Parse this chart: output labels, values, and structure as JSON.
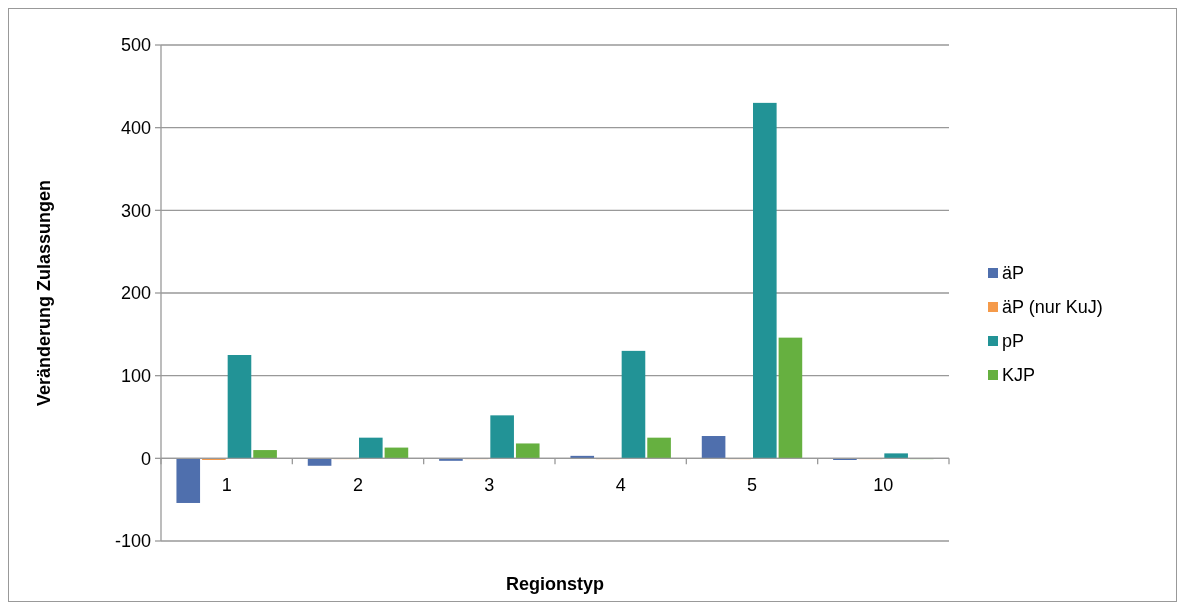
{
  "chart_data": {
    "type": "bar",
    "xlabel": "Regionstyp",
    "ylabel": "Veränderung Zulassungen",
    "categories": [
      "1",
      "2",
      "3",
      "4",
      "5",
      "10"
    ],
    "series": [
      {
        "name": "äP",
        "color": "#4f6fad",
        "values": [
          -54,
          -9,
          -3,
          3,
          27,
          -2
        ]
      },
      {
        "name": "äP (nur KuJ)",
        "color": "#f59a4a",
        "values": [
          -2,
          0,
          0,
          0,
          0,
          0
        ]
      },
      {
        "name": "pP",
        "color": "#229396",
        "values": [
          125,
          25,
          52,
          130,
          430,
          6
        ]
      },
      {
        "name": "KJP",
        "color": "#66b040",
        "values": [
          10,
          13,
          18,
          25,
          146,
          0
        ]
      }
    ],
    "ylim": [
      -100,
      500
    ],
    "yticks": [
      -100,
      0,
      100,
      200,
      300,
      400,
      500
    ],
    "grid": "y",
    "legend": "right"
  }
}
